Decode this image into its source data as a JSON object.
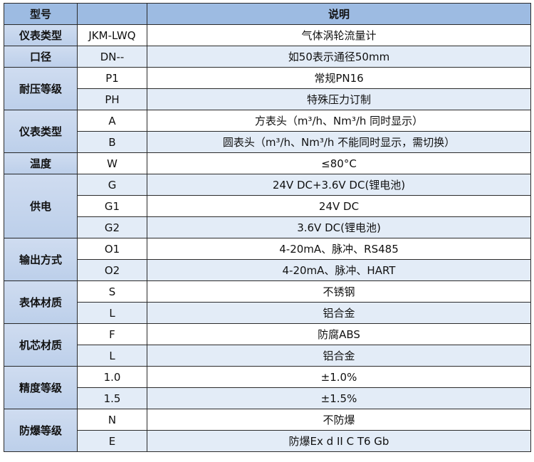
{
  "header": {
    "col1": "型号",
    "col2": "",
    "col3": "说明"
  },
  "colors": {
    "header": "#9dbbe2",
    "group": "#c5d6ee",
    "row_alt": "#e3ecf7"
  },
  "groups": [
    {
      "label": "仪表类型",
      "rows": [
        {
          "code": "JKM-LWQ",
          "desc": "气体涡轮流量计"
        }
      ]
    },
    {
      "label": "口径",
      "rows": [
        {
          "code": "DN--",
          "desc": "如50表示通径50mm"
        }
      ]
    },
    {
      "label": "耐压等级",
      "rows": [
        {
          "code": "P1",
          "desc": "常规PN16"
        },
        {
          "code": "PH",
          "desc": "特殊压力订制"
        }
      ]
    },
    {
      "label": "仪表类型",
      "rows": [
        {
          "code": "A",
          "desc": "方表头（m³/h、Nm³/h 同时显示）"
        },
        {
          "code": "B",
          "desc": "圆表头（m³/h、Nm³/h 不能同时显示，需切换）"
        }
      ]
    },
    {
      "label": "温度",
      "rows": [
        {
          "code": "W",
          "desc": "≤80°C"
        }
      ]
    },
    {
      "label": "供电",
      "rows": [
        {
          "code": "G",
          "desc": "24V DC+3.6V DC(锂电池)"
        },
        {
          "code": "G1",
          "desc": "24V DC"
        },
        {
          "code": "G2",
          "desc": "3.6V DC(锂电池)"
        }
      ]
    },
    {
      "label": "输出方式",
      "rows": [
        {
          "code": "O1",
          "desc": "4-20mA、脉冲、RS485"
        },
        {
          "code": "O2",
          "desc": "4-20mA、脉冲、HART"
        }
      ]
    },
    {
      "label": "表体材质",
      "rows": [
        {
          "code": "S",
          "desc": "不锈钢"
        },
        {
          "code": "L",
          "desc": "铝合金"
        }
      ]
    },
    {
      "label": "机芯材质",
      "rows": [
        {
          "code": "F",
          "desc": "防腐ABS"
        },
        {
          "code": "L",
          "desc": "铝合金"
        }
      ]
    },
    {
      "label": "精度等级",
      "rows": [
        {
          "code": "1.0",
          "desc": "±1.0%"
        },
        {
          "code": "1.5",
          "desc": "±1.5%"
        }
      ]
    },
    {
      "label": "防爆等级",
      "rows": [
        {
          "code": "N",
          "desc": "不防爆"
        },
        {
          "code": "E",
          "desc": "防爆Ex d II C T6 Gb"
        }
      ]
    }
  ]
}
